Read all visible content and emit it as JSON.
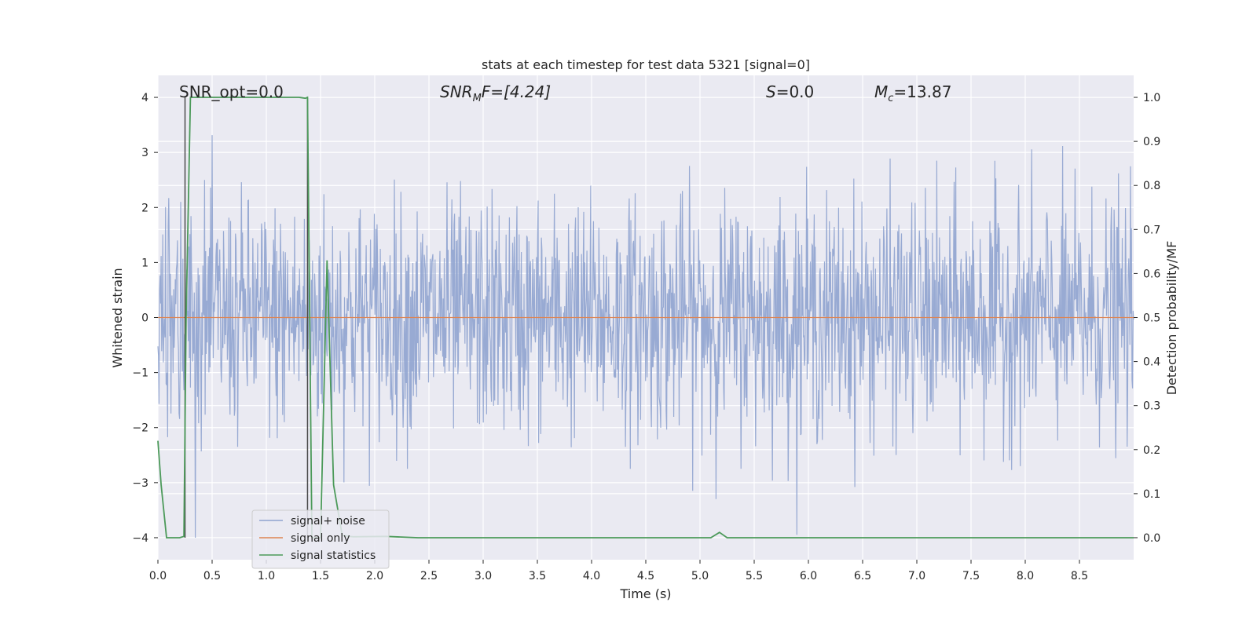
{
  "chart_data": {
    "type": "line",
    "title": "stats at each timestep for test data 5321 [signal=0]",
    "xlabel": "Time (s)",
    "ylabel": "Whitened strain",
    "y2label": "Detection probability/MF",
    "xlim": [
      0,
      9.0
    ],
    "ylim": [
      -4.4,
      4.4
    ],
    "y2lim": [
      -0.05,
      1.05
    ],
    "xticks": [
      "0.0",
      "0.5",
      "1.0",
      "1.5",
      "2.0",
      "2.5",
      "3.0",
      "3.5",
      "4.0",
      "4.5",
      "5.0",
      "5.5",
      "6.0",
      "6.5",
      "7.0",
      "7.5",
      "8.0",
      "8.5"
    ],
    "yticks": [
      "4",
      "3",
      "2",
      "1",
      "0",
      "−1",
      "−2",
      "−3",
      "−4"
    ],
    "y2ticks": [
      "1.0",
      "0.9",
      "0.8",
      "0.7",
      "0.6",
      "0.5",
      "0.4",
      "0.3",
      "0.2",
      "0.1",
      "0.0"
    ],
    "grid": true,
    "legend_position": "bottom-left",
    "annotations": {
      "snr_opt": "SNR_opt=0.0",
      "snr_mf_main": "SNR",
      "snr_mf_sub": "M",
      "snr_mf_rest": "F=[4.24]",
      "s_main": "S",
      "s_rest": "=0.0",
      "mc_main": "M",
      "mc_sub": "c",
      "mc_rest": "=13.87"
    },
    "series": [
      {
        "name": "signal+ noise",
        "color": "#8fa3cf",
        "description_values": "whitened noise, amplitude mostly within ±2.5, peaks near ±4",
        "noise_seed": 5321,
        "noise_sigma": 1.0,
        "noise_points": 1800
      },
      {
        "name": "signal only",
        "color": "#dd8452",
        "x": [
          0.0,
          9.0
        ],
        "y": [
          0.0,
          0.0
        ]
      },
      {
        "name": "signal statistics",
        "color": "#4c9a5a",
        "axis": "right",
        "x": [
          0.0,
          0.03,
          0.08,
          0.2,
          0.24,
          0.26,
          0.3,
          1.3,
          1.36,
          1.38,
          1.42,
          1.5,
          1.56,
          1.62,
          1.7,
          1.8,
          2.1,
          2.4,
          5.1,
          5.18,
          5.25,
          5.3,
          9.0
        ],
        "y": [
          0.22,
          0.12,
          0.0,
          0.0,
          0.003,
          0.5,
          1.0,
          1.0,
          0.998,
          1.0,
          0.0,
          0.0,
          0.63,
          0.12,
          0.005,
          0.002,
          0.003,
          0.0,
          0.0,
          0.012,
          0.0,
          0.0,
          0.0
        ]
      }
    ],
    "vertical_lines": [
      {
        "color": "#4a4a4a",
        "x": 0.25
      },
      {
        "color": "#4a4a4a",
        "x": 1.38
      }
    ]
  }
}
